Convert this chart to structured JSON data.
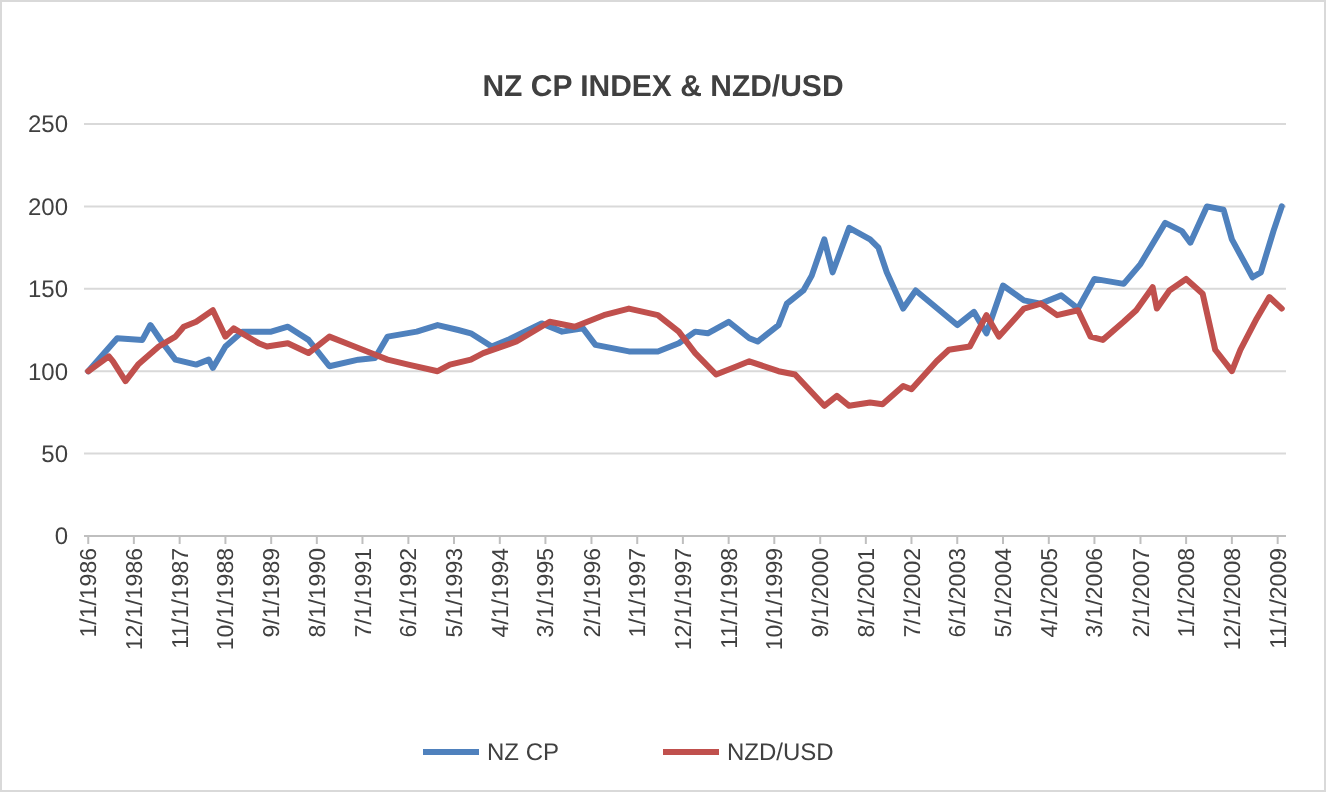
{
  "chart_data": {
    "type": "line",
    "title": "NZ CP INDEX & NZD/USD",
    "xlim": [
      "1985-12",
      "2010-01"
    ],
    "xticks": [
      {
        "value": "1986-01",
        "label": "1/1/1986"
      },
      {
        "value": "1986-12",
        "label": "12/1/1986"
      },
      {
        "value": "1987-11",
        "label": "11/1/1987"
      },
      {
        "value": "1988-10",
        "label": "10/1/1988"
      },
      {
        "value": "1989-09",
        "label": "9/1/1989"
      },
      {
        "value": "1990-08",
        "label": "8/1/1990"
      },
      {
        "value": "1991-07",
        "label": "7/1/1991"
      },
      {
        "value": "1992-06",
        "label": "6/1/1992"
      },
      {
        "value": "1993-05",
        "label": "5/1/1993"
      },
      {
        "value": "1994-04",
        "label": "4/1/1994"
      },
      {
        "value": "1995-03",
        "label": "3/1/1995"
      },
      {
        "value": "1996-02",
        "label": "2/1/1996"
      },
      {
        "value": "1997-01",
        "label": "1/1/1997"
      },
      {
        "value": "1997-12",
        "label": "12/1/1997"
      },
      {
        "value": "1998-11",
        "label": "11/1/1998"
      },
      {
        "value": "1999-10",
        "label": "10/1/1999"
      },
      {
        "value": "2000-09",
        "label": "9/1/2000"
      },
      {
        "value": "2001-08",
        "label": "8/1/2001"
      },
      {
        "value": "2002-07",
        "label": "7/1/2002"
      },
      {
        "value": "2003-06",
        "label": "6/1/2003"
      },
      {
        "value": "2004-05",
        "label": "5/1/2004"
      },
      {
        "value": "2005-04",
        "label": "4/1/2005"
      },
      {
        "value": "2006-03",
        "label": "3/1/2006"
      },
      {
        "value": "2007-02",
        "label": "2/1/2007"
      },
      {
        "value": "2008-01",
        "label": "1/1/2008"
      },
      {
        "value": "2008-12",
        "label": "12/1/2008"
      },
      {
        "value": "2009-11",
        "label": "11/1/2009"
      }
    ],
    "ylim": [
      0,
      250
    ],
    "yticks": [
      0,
      50,
      100,
      150,
      200,
      250
    ],
    "grid": "y",
    "legend": "bottom",
    "marker": "none",
    "line_style": "solid",
    "series": [
      {
        "name": "NZ CP",
        "color": "#4f81bd",
        "x": [
          "1986-01",
          "1986-08",
          "1987-02",
          "1987-04",
          "1987-07",
          "1987-10",
          "1988-03",
          "1988-06",
          "1988-07",
          "1988-10",
          "1989-02",
          "1989-09",
          "1990-01",
          "1990-06",
          "1990-11",
          "1991-06",
          "1991-10",
          "1992-01",
          "1992-08",
          "1993-01",
          "1993-06",
          "1993-09",
          "1994-02",
          "1994-06",
          "1995-02",
          "1995-07",
          "1995-12",
          "1996-03",
          "1996-11",
          "1997-06",
          "1997-11",
          "1998-03",
          "1998-06",
          "1998-11",
          "1999-04",
          "1999-06",
          "1999-11",
          "2000-01",
          "2000-05",
          "2000-07",
          "2000-10",
          "2000-12",
          "2001-04",
          "2001-09",
          "2001-11",
          "2002-01",
          "2002-05",
          "2002-08",
          "2003-06",
          "2003-10",
          "2004-01",
          "2004-05",
          "2004-10",
          "2005-02",
          "2005-07",
          "2005-11",
          "2006-03",
          "2006-10",
          "2007-02",
          "2007-08",
          "2007-12",
          "2008-02",
          "2008-06",
          "2008-10",
          "2008-12",
          "2009-05",
          "2009-07",
          "2009-10",
          "2009-12"
        ],
        "values": [
          100,
          120,
          119,
          128,
          117,
          107,
          104,
          107,
          102,
          115,
          124,
          124,
          127,
          119,
          103,
          107,
          108,
          121,
          124,
          128,
          125,
          123,
          115,
          119,
          129,
          124,
          126,
          116,
          112,
          112,
          117,
          124,
          123,
          130,
          120,
          118,
          128,
          141,
          149,
          158,
          180,
          160,
          187,
          180,
          175,
          160,
          138,
          149,
          128,
          136,
          123,
          152,
          143,
          141,
          146,
          138,
          156,
          153,
          165,
          190,
          185,
          178,
          200,
          198,
          180,
          157,
          160,
          185,
          200
        ]
      },
      {
        "name": "NZD/USD",
        "color": "#c0504d",
        "x": [
          "1986-01",
          "1986-06",
          "1986-07",
          "1986-10",
          "1987-01",
          "1987-06",
          "1987-10",
          "1987-12",
          "1988-03",
          "1988-07",
          "1988-10",
          "1988-12",
          "1989-06",
          "1989-08",
          "1990-01",
          "1990-06",
          "1990-11",
          "1991-04",
          "1991-09",
          "1992-01",
          "1992-06",
          "1993-01",
          "1993-04",
          "1993-09",
          "1993-12",
          "1994-08",
          "1995-04",
          "1995-10",
          "1996-05",
          "1996-11",
          "1997-06",
          "1997-11",
          "1998-03",
          "1998-08",
          "1999-01",
          "1999-04",
          "1999-11",
          "2000-03",
          "2000-10",
          "2001-01",
          "2001-04",
          "2001-09",
          "2001-12",
          "2002-05",
          "2002-07",
          "2003-01",
          "2003-04",
          "2003-09",
          "2004-01",
          "2004-04",
          "2004-10",
          "2005-02",
          "2005-06",
          "2005-11",
          "2006-02",
          "2006-05",
          "2006-10",
          "2007-01",
          "2007-05",
          "2007-06",
          "2007-09",
          "2008-01",
          "2008-05",
          "2008-08",
          "2008-12",
          "2009-02",
          "2009-06",
          "2009-09",
          "2009-12"
        ],
        "values": [
          100,
          109,
          106,
          94,
          104,
          115,
          121,
          127,
          130,
          137,
          121,
          126,
          117,
          115,
          117,
          111,
          121,
          116,
          111,
          107,
          104,
          100,
          104,
          107,
          111,
          118,
          130,
          127,
          134,
          138,
          134,
          124,
          111,
          98,
          103,
          106,
          100,
          98,
          79,
          85,
          79,
          81,
          80,
          91,
          89,
          106,
          113,
          115,
          134,
          121,
          138,
          141,
          134,
          137,
          121,
          119,
          130,
          137,
          151,
          138,
          149,
          156,
          147,
          113,
          100,
          113,
          132,
          145,
          138
        ]
      }
    ]
  }
}
